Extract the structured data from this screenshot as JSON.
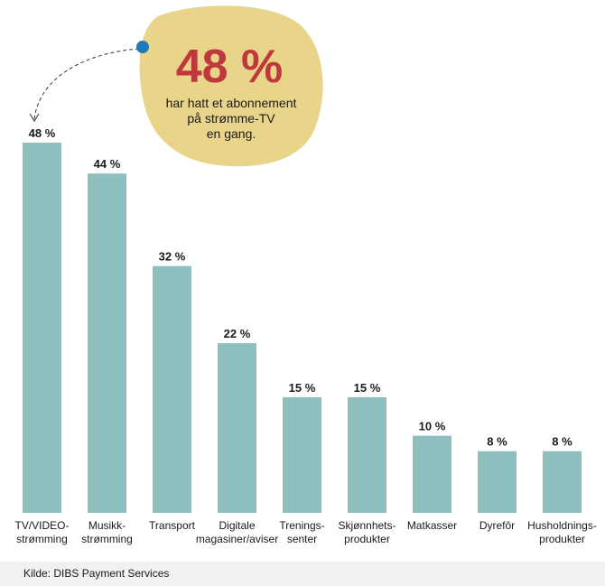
{
  "callout": {
    "value": "48 %",
    "lines": [
      "har hatt et abonnement",
      "på strømme-TV",
      "en gang."
    ]
  },
  "source": "Kilde: DIBS Payment Services",
  "colors": {
    "bar": "#8ebfbf",
    "callout_bg": "#e8d58a",
    "callout_number": "#c0383e",
    "dot": "#1f7ab8"
  },
  "chart_data": {
    "type": "bar",
    "unit": "%",
    "ylim": [
      0,
      48
    ],
    "grid": false,
    "categories": [
      [
        "TV/VIDEO-",
        "strømming"
      ],
      [
        "Musikk-",
        "strømming"
      ],
      [
        "Transport"
      ],
      [
        "Digitale",
        "magasiner/aviser"
      ],
      [
        "Trenings-",
        "senter"
      ],
      [
        "Skjønnhets-",
        "produkter"
      ],
      [
        "Matkasser"
      ],
      [
        "Dyrefôr"
      ],
      [
        "Husholdnings-",
        "produkter"
      ]
    ],
    "values": [
      48,
      44,
      32,
      22,
      15,
      15,
      10,
      8,
      8
    ],
    "value_labels": [
      "48 %",
      "44 %",
      "32 %",
      "22 %",
      "15 %",
      "15 %",
      "10 %",
      "8 %",
      "8 %"
    ]
  }
}
